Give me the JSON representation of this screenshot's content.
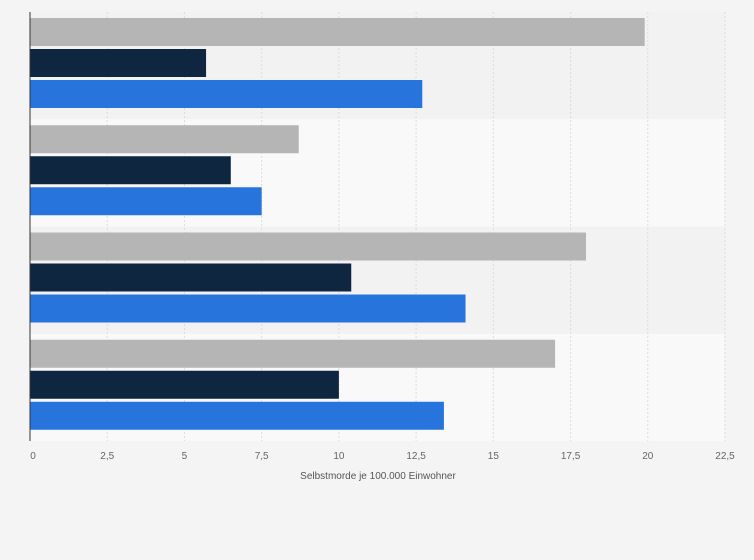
{
  "chart_data": {
    "type": "bar",
    "orientation": "horizontal",
    "categories": [
      "",
      "",
      "",
      ""
    ],
    "series": [
      {
        "color": "#b5b5b5",
        "values": [
          19.9,
          8.7,
          18.0,
          17.0
        ]
      },
      {
        "color": "#0e2640",
        "values": [
          5.7,
          6.5,
          10.4,
          10.0
        ]
      },
      {
        "color": "#2775dc",
        "values": [
          12.7,
          7.5,
          14.1,
          13.4
        ]
      }
    ],
    "x_ticks": [
      "0",
      "2,5",
      "5",
      "7,5",
      "10",
      "12,5",
      "15",
      "17,5",
      "20",
      "22,5"
    ],
    "x_tick_values": [
      0,
      2.5,
      5,
      7.5,
      10,
      12.5,
      15,
      17.5,
      20,
      22.5
    ],
    "xlim": [
      0,
      22.5
    ],
    "xlabel": "Selbstmorde je 100.000 Einwohner",
    "grid": true,
    "legend": "none"
  },
  "colors": {
    "background": "#f4f4f4",
    "band_dark": "#f2f2f2",
    "band_light": "#f9f9f9",
    "grid": "#dcdcdc",
    "axis": "#333333"
  }
}
